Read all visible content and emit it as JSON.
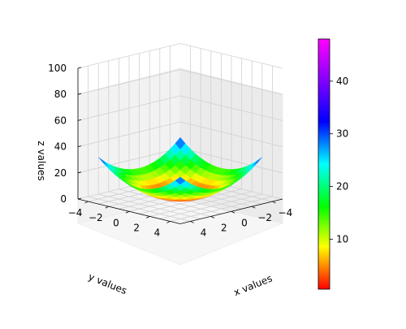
{
  "chart_data": {
    "type": "surface3d",
    "function": "z = x^2 + y^2",
    "colormap": "gist_rainbow_r",
    "x": [
      -4,
      -3.5,
      -3,
      -2.5,
      -2,
      -1.5,
      -1,
      -0.5,
      0,
      0.5,
      1,
      1.5,
      2,
      2.5,
      3,
      3.5,
      4
    ],
    "y": [
      -4,
      -3.5,
      -3,
      -2.5,
      -2,
      -1.5,
      -1,
      -0.5,
      0,
      0.5,
      1,
      1.5,
      2,
      2.5,
      3,
      3.5,
      4
    ],
    "xlabel": "x values",
    "ylabel": "y values",
    "zlabel": "z values",
    "xlim": [
      -5,
      5
    ],
    "ylim": [
      -5,
      5
    ],
    "zlim": [
      0,
      100
    ],
    "x_ticks": [
      -4,
      -2,
      0,
      2,
      4
    ],
    "x_tick_labels": [
      "−4",
      "−2",
      "0",
      "2",
      "4"
    ],
    "y_ticks": [
      -4,
      -2,
      0,
      2,
      4
    ],
    "y_tick_labels": [
      "−4",
      "−2",
      "0",
      "2",
      "4"
    ],
    "z_ticks": [
      0,
      20,
      40,
      60,
      80,
      100
    ],
    "z_tick_labels": [
      "0",
      "20",
      "40",
      "60",
      "80",
      "100"
    ],
    "colorbar": {
      "range": [
        0.5,
        48
      ],
      "ticks": [
        10,
        20,
        30,
        40
      ],
      "tick_labels": [
        "10",
        "20",
        "30",
        "40"
      ]
    },
    "grid": true,
    "view": {
      "elevation": 20,
      "azimuth": 45
    }
  }
}
